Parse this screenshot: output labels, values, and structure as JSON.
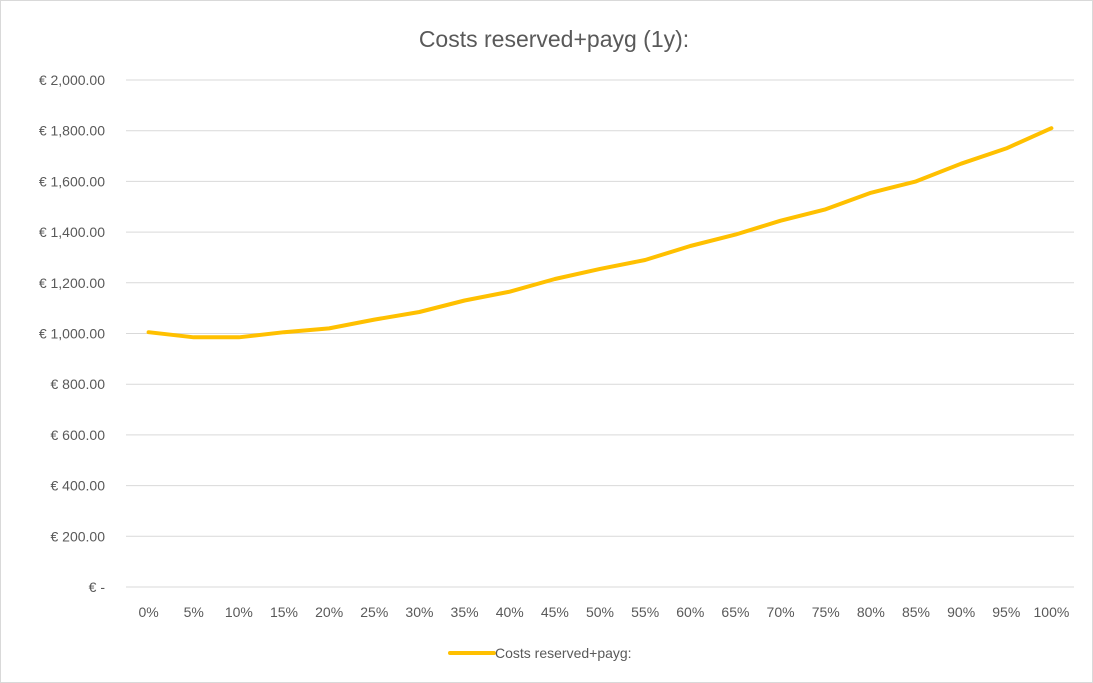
{
  "chart_data": {
    "type": "line",
    "title": "Costs reserved+payg  (1y):",
    "xlabel": "",
    "ylabel": "",
    "categories": [
      "0%",
      "5%",
      "10%",
      "15%",
      "20%",
      "25%",
      "30%",
      "35%",
      "40%",
      "45%",
      "50%",
      "55%",
      "60%",
      "65%",
      "70%",
      "75%",
      "80%",
      "85%",
      "90%",
      "95%",
      "100%"
    ],
    "ylim": [
      0,
      2000
    ],
    "y_ticks": [
      0,
      200,
      400,
      600,
      800,
      1000,
      1200,
      1400,
      1600,
      1800,
      2000
    ],
    "y_tick_labels": [
      "€ -",
      "€ 200.00",
      "€ 400.00",
      "€ 600.00",
      "€ 800.00",
      "€ 1,000.00",
      "€ 1,200.00",
      "€ 1,400.00",
      "€ 1,600.00",
      "€ 1,800.00",
      "€ 2,000.00"
    ],
    "grid": true,
    "legend_position": "bottom",
    "series": [
      {
        "name": "Costs reserved+payg:",
        "color": "#ffc000",
        "values": [
          1005,
          985,
          985,
          1005,
          1020,
          1055,
          1085,
          1130,
          1165,
          1215,
          1255,
          1290,
          1345,
          1390,
          1445,
          1490,
          1555,
          1600,
          1670,
          1730,
          1810
        ]
      }
    ]
  }
}
